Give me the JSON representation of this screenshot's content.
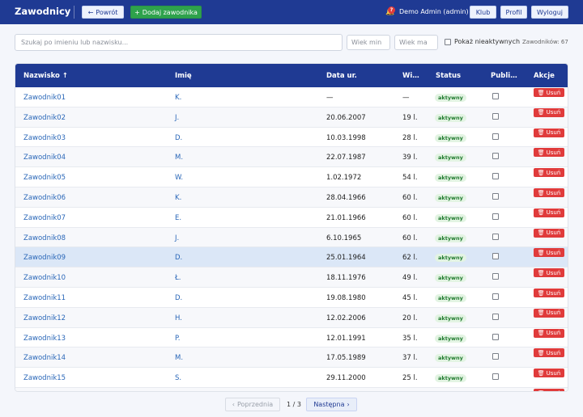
{
  "header": {
    "title": "Zawodnicy",
    "back_label": "Powrót",
    "add_label": "Dodaj zawodnika",
    "notification_count": "?",
    "user": "Demo Admin (admin)",
    "nav": [
      "Klub",
      "Profil",
      "Wyloguj"
    ]
  },
  "filters": {
    "search_placeholder": "Szukaj po imieniu lub nazwisku...",
    "age_min_placeholder": "Wiek min",
    "age_max_placeholder": "Wiek ma",
    "show_inactive_label": "Pokaż nieaktywnych",
    "count_text": "Zawodników: 67"
  },
  "table": {
    "columns": [
      "Nazwisko",
      "Imię",
      "Data ur.",
      "Wi…",
      "Status",
      "Publi…",
      "Akcje"
    ],
    "sort_column": "Nazwisko",
    "sort_direction": "asc",
    "delete_label": "Usuń",
    "rows": [
      {
        "surname": "Zawodnik01",
        "first": "K.",
        "birth": "—",
        "age": "—",
        "status": "aktywny"
      },
      {
        "surname": "Zawodnik02",
        "first": "J.",
        "birth": "20.06.2007",
        "age": "19 l.",
        "status": "aktywny"
      },
      {
        "surname": "Zawodnik03",
        "first": "D.",
        "birth": "10.03.1998",
        "age": "28 l.",
        "status": "aktywny"
      },
      {
        "surname": "Zawodnik04",
        "first": "M.",
        "birth": "22.07.1987",
        "age": "39 l.",
        "status": "aktywny"
      },
      {
        "surname": "Zawodnik05",
        "first": "W.",
        "birth": "1.02.1972",
        "age": "54 l.",
        "status": "aktywny"
      },
      {
        "surname": "Zawodnik06",
        "first": "K.",
        "birth": "28.04.1966",
        "age": "60 l.",
        "status": "aktywny"
      },
      {
        "surname": "Zawodnik07",
        "first": "E.",
        "birth": "21.01.1966",
        "age": "60 l.",
        "status": "aktywny"
      },
      {
        "surname": "Zawodnik08",
        "first": "J.",
        "birth": "6.10.1965",
        "age": "60 l.",
        "status": "aktywny"
      },
      {
        "surname": "Zawodnik09",
        "first": "D.",
        "birth": "25.01.1964",
        "age": "62 l.",
        "status": "aktywny"
      },
      {
        "surname": "Zawodnik10",
        "first": "Ł.",
        "birth": "18.11.1976",
        "age": "49 l.",
        "status": "aktywny"
      },
      {
        "surname": "Zawodnik11",
        "first": "D.",
        "birth": "19.08.1980",
        "age": "45 l.",
        "status": "aktywny"
      },
      {
        "surname": "Zawodnik12",
        "first": "H.",
        "birth": "12.02.2006",
        "age": "20 l.",
        "status": "aktywny"
      },
      {
        "surname": "Zawodnik13",
        "first": "P.",
        "birth": "12.01.1991",
        "age": "35 l.",
        "status": "aktywny"
      },
      {
        "surname": "Zawodnik14",
        "first": "M.",
        "birth": "17.05.1989",
        "age": "37 l.",
        "status": "aktywny"
      },
      {
        "surname": "Zawodnik15",
        "first": "S.",
        "birth": "29.11.2000",
        "age": "25 l.",
        "status": "aktywny"
      }
    ]
  },
  "pagination": {
    "prev_label": "Poprzednia",
    "info": "1 / 3",
    "next_label": "Następna"
  },
  "colors": {
    "primary": "#1f3a93",
    "add_green": "#2ea24c",
    "delete_red": "#e03b3b",
    "link": "#2a67b8"
  }
}
